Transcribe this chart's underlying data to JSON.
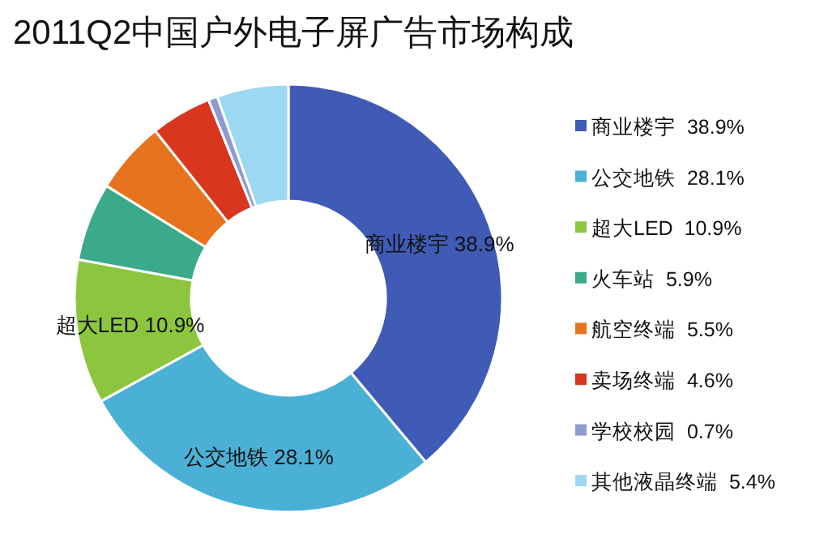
{
  "chart_data": {
    "type": "donut",
    "title": "2011Q2中国户外电子屏广告市场构成",
    "categories": [
      "商业楼宇",
      "公交地铁",
      "超大LED",
      "火车站",
      "航空终端",
      "卖场终端",
      "学校校园",
      "其他液晶终端"
    ],
    "values": [
      38.9,
      28.1,
      10.9,
      5.9,
      5.5,
      4.6,
      0.7,
      5.4
    ],
    "colors": [
      "#3f5bb5",
      "#4bb0d6",
      "#8cc63f",
      "#3aaa8a",
      "#e8731e",
      "#d9361f",
      "#8e9bd0",
      "#9dd8f2"
    ],
    "value_labels": [
      "38.9%",
      "28.1%",
      "10.9%",
      "5.9%",
      "5.5%",
      "4.6%",
      "0.7%",
      "5.4%"
    ],
    "annotations": [
      {
        "text": "商业楼宇  38.9%",
        "x": "商业楼宇"
      },
      {
        "text": "公交地铁  28.1%",
        "x": "公交地铁"
      },
      {
        "text": "超大LED  10.9%",
        "x": "超大LED"
      }
    ],
    "legend": "right"
  }
}
